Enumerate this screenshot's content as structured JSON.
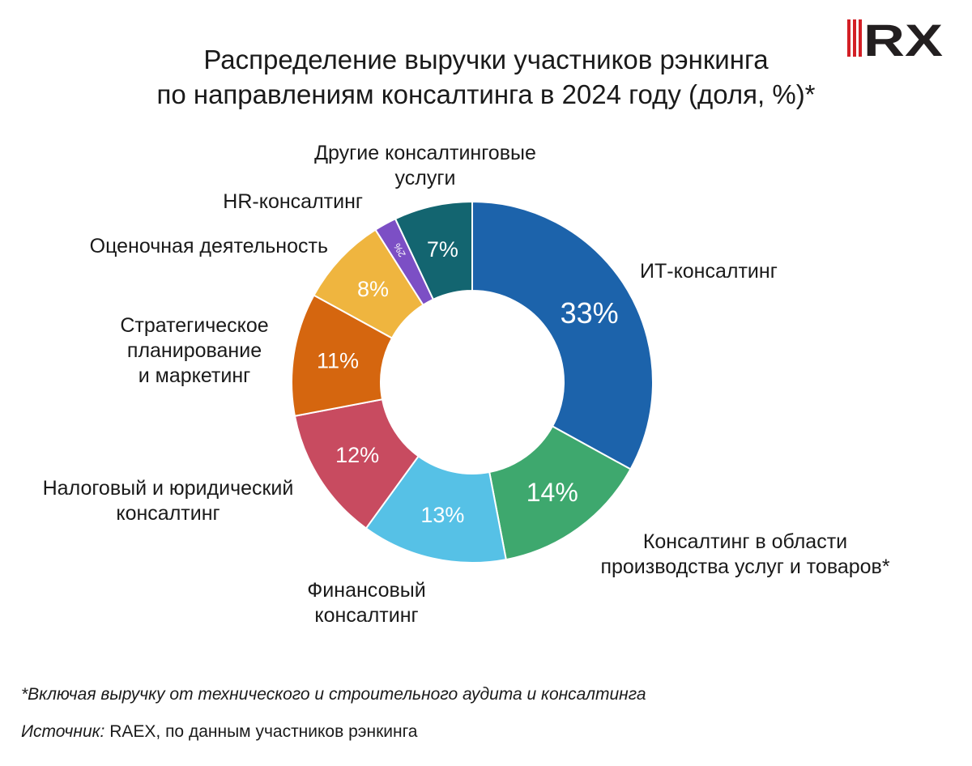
{
  "title_line1": "Распределение выручки участников рэнкинга",
  "title_line2": "по направлениям консалтинга в 2024 году (доля, %)*",
  "logo": {
    "text": "RX",
    "colors": {
      "red": "#d31f26",
      "dark": "#231f20"
    }
  },
  "chart_data": {
    "type": "pie",
    "variant": "donut",
    "title": "Распределение выручки участников рэнкинга по направлениям консалтинга в 2024 году (доля, %)*",
    "unit": "%",
    "slices": [
      {
        "label": "ИТ-консалтинг",
        "value": 33,
        "display": "33%",
        "color": "#1c63ab"
      },
      {
        "label": "Консалтинг в области производства услуг и товаров*",
        "value": 14,
        "display": "14%",
        "color": "#3ea86e"
      },
      {
        "label": "Финансовый консалтинг",
        "value": 13,
        "display": "13%",
        "color": "#56c1e6"
      },
      {
        "label": "Налоговый и юридический консалтинг",
        "value": 12,
        "display": "12%",
        "color": "#c84b60"
      },
      {
        "label": "Стратегическое планирование и маркетинг",
        "value": 11,
        "display": "11%",
        "color": "#d5660f"
      },
      {
        "label": "Оценочная деятельность",
        "value": 8,
        "display": "8%",
        "color": "#efb53f"
      },
      {
        "label": "HR-консалтинг",
        "value": 2,
        "display": "2%",
        "color": "#7c4fc5"
      },
      {
        "label": "Другие консалтинговые услуги",
        "value": 7,
        "display": "7%",
        "color": "#136570"
      }
    ]
  },
  "labels": {
    "it": [
      "ИТ-консалтинг"
    ],
    "production": [
      "Консалтинг в области",
      "производства услуг и товаров*"
    ],
    "financial": [
      "Финансовый",
      "консалтинг"
    ],
    "tax": [
      "Налоговый и юридический",
      "консалтинг"
    ],
    "strategy": [
      "Стратегическое",
      "планирование",
      "и маркетинг"
    ],
    "valuation": [
      "Оценочная деятельность"
    ],
    "hr": [
      "HR-консалтинг"
    ],
    "other": [
      "Другие консалтинговые",
      "услуги"
    ]
  },
  "footnote": "*Включая выручку от технического и строительного аудита и консалтинга",
  "source": {
    "label": "Источник:",
    "text": " RAEX, по данным участников рэнкинга"
  }
}
